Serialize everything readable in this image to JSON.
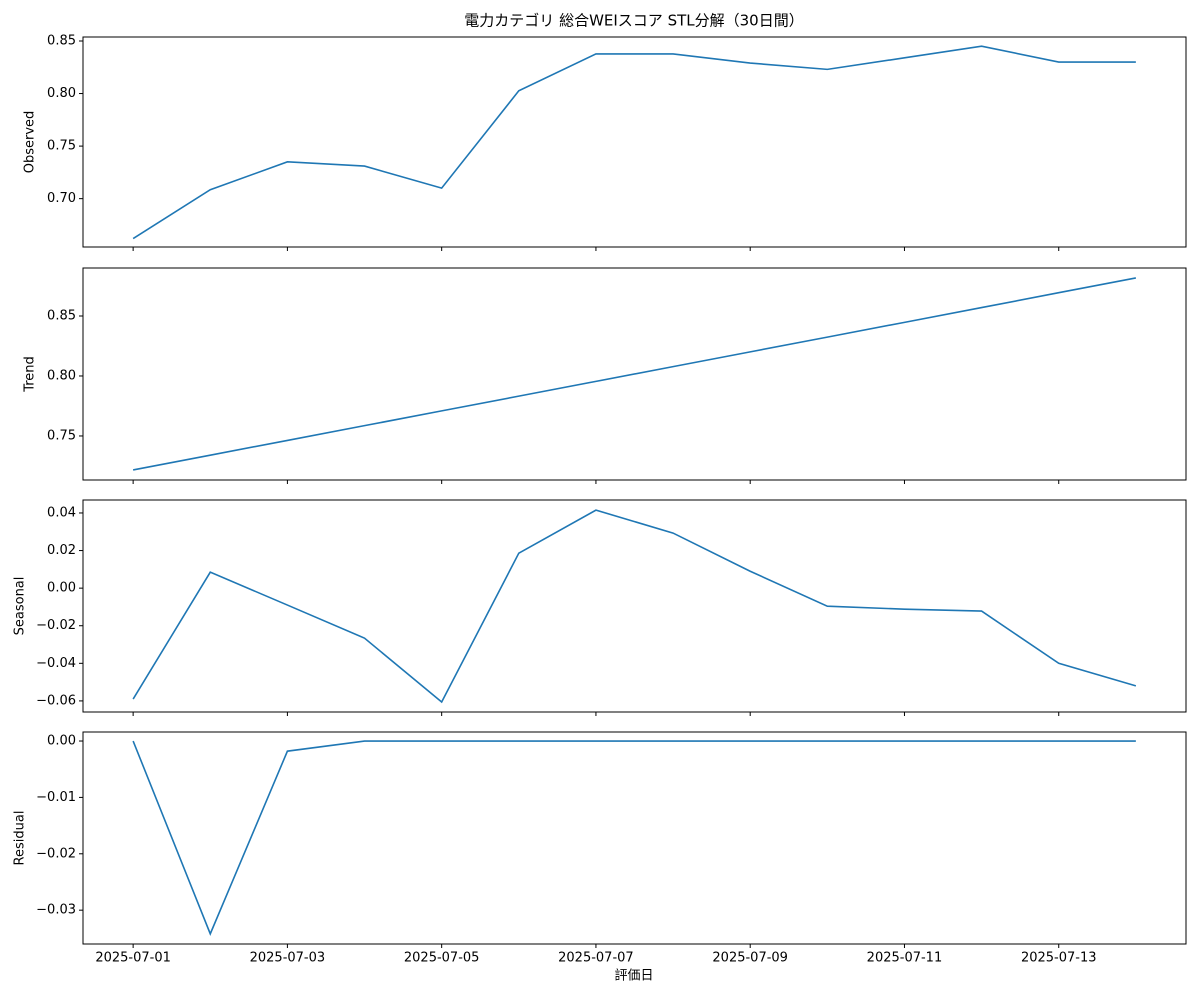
{
  "chart_data": [
    {
      "type": "line",
      "title": "電力カテゴリ 総合WEIスコア STL分解（30日間）",
      "ylabel": "Observed",
      "color": "#1f77b4",
      "x": [
        "2025-07-01",
        "2025-07-02",
        "2025-07-03",
        "2025-07-04",
        "2025-07-05",
        "2025-07-06",
        "2025-07-07",
        "2025-07-08",
        "2025-07-09",
        "2025-07-10",
        "2025-07-11",
        "2025-07-12",
        "2025-07-13",
        "2025-07-14"
      ],
      "values": [
        0.662,
        0.7085,
        0.735,
        0.731,
        0.71,
        0.8026,
        0.8377,
        0.8377,
        0.829,
        0.823,
        0.834,
        0.845,
        0.83,
        0.83
      ],
      "ylim": [
        0.654,
        0.8538
      ],
      "yticks": [
        {
          "value": 0.7,
          "label": "0.70"
        },
        {
          "value": 0.75,
          "label": "0.75"
        },
        {
          "value": 0.8,
          "label": "0.80"
        },
        {
          "value": 0.85,
          "label": "0.85"
        }
      ]
    },
    {
      "type": "line",
      "ylabel": "Trend",
      "color": "#1f77b4",
      "x": [
        "2025-07-01",
        "2025-07-02",
        "2025-07-03",
        "2025-07-04",
        "2025-07-05",
        "2025-07-06",
        "2025-07-07",
        "2025-07-08",
        "2025-07-09",
        "2025-07-10",
        "2025-07-11",
        "2025-07-12",
        "2025-07-13",
        "2025-07-14"
      ],
      "values": [
        0.7217,
        0.734,
        0.7463,
        0.7586,
        0.7709,
        0.7832,
        0.7955,
        0.8078,
        0.8201,
        0.8324,
        0.8447,
        0.857,
        0.8694,
        0.8817
      ],
      "ylim": [
        0.7133,
        0.89
      ],
      "yticks": [
        {
          "value": 0.75,
          "label": "0.75"
        },
        {
          "value": 0.8,
          "label": "0.80"
        },
        {
          "value": 0.85,
          "label": "0.85"
        }
      ]
    },
    {
      "type": "line",
      "ylabel": "Seasonal",
      "color": "#1f77b4",
      "x": [
        "2025-07-01",
        "2025-07-02",
        "2025-07-03",
        "2025-07-04",
        "2025-07-05",
        "2025-07-06",
        "2025-07-07",
        "2025-07-08",
        "2025-07-09",
        "2025-07-10",
        "2025-07-11",
        "2025-07-12",
        "2025-07-13",
        "2025-07-14"
      ],
      "values": [
        -0.059,
        0.0085,
        -0.009,
        -0.0266,
        -0.0606,
        0.0186,
        0.0415,
        0.0293,
        0.009,
        -0.0096,
        -0.0112,
        -0.0122,
        -0.04,
        -0.052
      ],
      "ylim": [
        -0.0659,
        0.0469
      ],
      "yticks": [
        {
          "value": -0.06,
          "label": "−0.06"
        },
        {
          "value": -0.04,
          "label": "−0.04"
        },
        {
          "value": -0.02,
          "label": "−0.02"
        },
        {
          "value": 0,
          "label": "0.00"
        },
        {
          "value": 0.02,
          "label": "0.02"
        },
        {
          "value": 0.04,
          "label": "0.04"
        }
      ]
    },
    {
      "type": "line",
      "ylabel": "Residual",
      "xlabel": "評価日",
      "color": "#1f77b4",
      "x": [
        "2025-07-01",
        "2025-07-02",
        "2025-07-03",
        "2025-07-04",
        "2025-07-05",
        "2025-07-06",
        "2025-07-07",
        "2025-07-08",
        "2025-07-09",
        "2025-07-10",
        "2025-07-11",
        "2025-07-12",
        "2025-07-13",
        "2025-07-14"
      ],
      "values": [
        0,
        -0.0342,
        -0.0018,
        0,
        0,
        0,
        0,
        0,
        0,
        0,
        0,
        0,
        0,
        0
      ],
      "ylim": [
        -0.036,
        0.0016
      ],
      "yticks": [
        {
          "value": -0.03,
          "label": "−0.03"
        },
        {
          "value": -0.02,
          "label": "−0.02"
        },
        {
          "value": -0.01,
          "label": "−0.01"
        },
        {
          "value": 0,
          "label": "0.00"
        }
      ],
      "xticks": [
        "2025-07-01",
        "2025-07-03",
        "2025-07-05",
        "2025-07-07",
        "2025-07-09",
        "2025-07-11",
        "2025-07-13"
      ]
    }
  ]
}
